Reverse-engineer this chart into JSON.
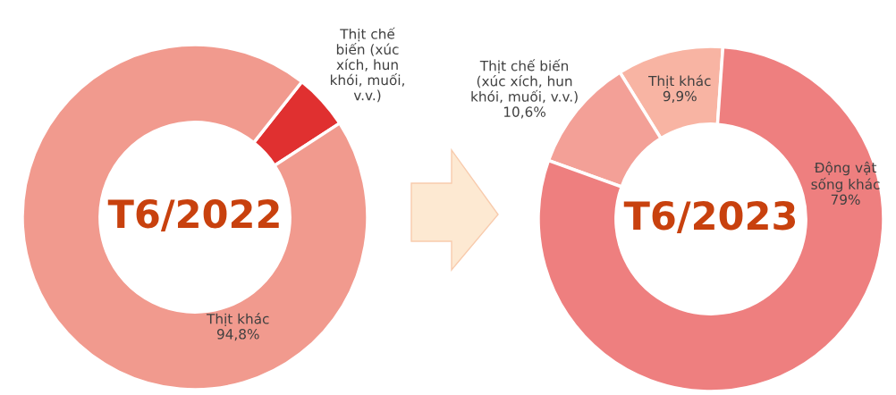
{
  "chart_data": [
    {
      "type": "donut",
      "title": "T6/2022",
      "categories": [
        "Thịt chế\nbiến (xúc\nxích, hun\nkhói, muối,\nv.v.)",
        "Thịt khác"
      ],
      "values": [
        5.2,
        94.8
      ],
      "colors": [
        "#e03030",
        "#f19a8e"
      ],
      "value_labels": [
        null,
        "94,8%"
      ]
    },
    {
      "type": "donut",
      "title": "T6/2023",
      "categories": [
        "Thịt khác",
        "Thịt chế biến\n(xúc xích, hun\nkhói, muối, v.v.)",
        "Động vật\nsống khác"
      ],
      "values": [
        9.9,
        10.6,
        79
      ],
      "colors": [
        "#f8b4a3",
        "#f3a097",
        "#ee7f7f"
      ],
      "value_labels": [
        "9,9%",
        "10,6%",
        "79%"
      ]
    }
  ]
}
